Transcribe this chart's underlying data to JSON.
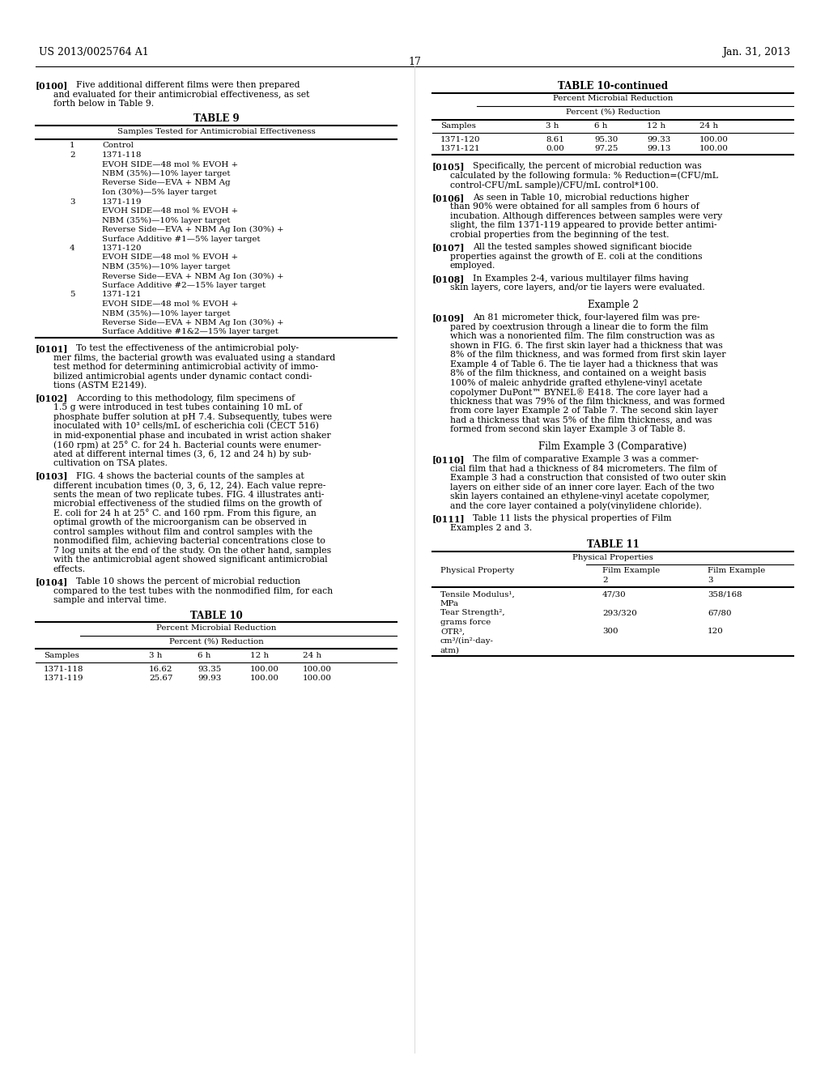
{
  "page_header_left": "US 2013/0025764 A1",
  "page_header_right": "Jan. 31, 2013",
  "page_number": "17",
  "background_color": "#ffffff"
}
